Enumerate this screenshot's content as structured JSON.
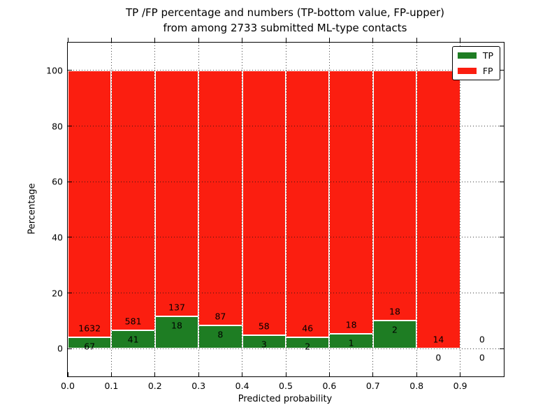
{
  "chart_data": {
    "type": "bar",
    "stacked": true,
    "title_line1": "TP /FP percentage and numbers (TP-bottom value, FP-upper)",
    "title_line2": "from among 2733 submitted ML-type contacts",
    "xlabel": "Predicted probability",
    "ylabel": "Percentage",
    "xlim": [
      0.0,
      1.0
    ],
    "ylim": [
      -10,
      110
    ],
    "x_tick_values": [
      0.0,
      0.1,
      0.2,
      0.3,
      0.4,
      0.5,
      0.6,
      0.7,
      0.8,
      0.9
    ],
    "x_tick_labels": [
      "0.0",
      "0.1",
      "0.2",
      "0.3",
      "0.4",
      "0.5",
      "0.6",
      "0.7",
      "0.8",
      "0.9"
    ],
    "y_tick_values": [
      0,
      20,
      40,
      60,
      80,
      100
    ],
    "y_tick_labels": [
      "0",
      "20",
      "40",
      "60",
      "80",
      "100"
    ],
    "grid": {
      "style": "dotted",
      "drawn_above_bars": true
    },
    "bin_width": 0.1,
    "total_contacts": 2733,
    "bins": [
      {
        "range": [
          0.0,
          0.1
        ],
        "tp": 67,
        "fp": 1632,
        "tp_pct": 3.94,
        "fp_pct": 96.06
      },
      {
        "range": [
          0.1,
          0.2
        ],
        "tp": 41,
        "fp": 581,
        "tp_pct": 6.59,
        "fp_pct": 93.41
      },
      {
        "range": [
          0.2,
          0.3
        ],
        "tp": 18,
        "fp": 137,
        "tp_pct": 11.61,
        "fp_pct": 88.39
      },
      {
        "range": [
          0.3,
          0.4
        ],
        "tp": 8,
        "fp": 87,
        "tp_pct": 8.42,
        "fp_pct": 91.58
      },
      {
        "range": [
          0.4,
          0.5
        ],
        "tp": 3,
        "fp": 58,
        "tp_pct": 4.92,
        "fp_pct": 95.08
      },
      {
        "range": [
          0.5,
          0.6
        ],
        "tp": 2,
        "fp": 46,
        "tp_pct": 4.17,
        "fp_pct": 95.83
      },
      {
        "range": [
          0.6,
          0.7
        ],
        "tp": 1,
        "fp": 18,
        "tp_pct": 5.26,
        "fp_pct": 94.74
      },
      {
        "range": [
          0.7,
          0.8
        ],
        "tp": 2,
        "fp": 18,
        "tp_pct": 10.0,
        "fp_pct": 90.0
      },
      {
        "range": [
          0.8,
          0.9
        ],
        "tp": 0,
        "fp": 14,
        "tp_pct": 0.0,
        "fp_pct": 100.0
      },
      {
        "range": [
          0.9,
          1.0
        ],
        "tp": 0,
        "fp": 0,
        "tp_pct": 0.0,
        "fp_pct": 0.0
      }
    ],
    "legend": {
      "position": "upper right",
      "entries": [
        {
          "label": "TP",
          "color": "#1e7d23"
        },
        {
          "label": "FP",
          "color": "#fb1e10"
        }
      ]
    },
    "colors": {
      "tp": "#1e7d23",
      "fp": "#fb1e10",
      "grid": "#111111",
      "bar_edge": "#ffffff",
      "background": "#ffffff",
      "text": "#000000"
    }
  }
}
